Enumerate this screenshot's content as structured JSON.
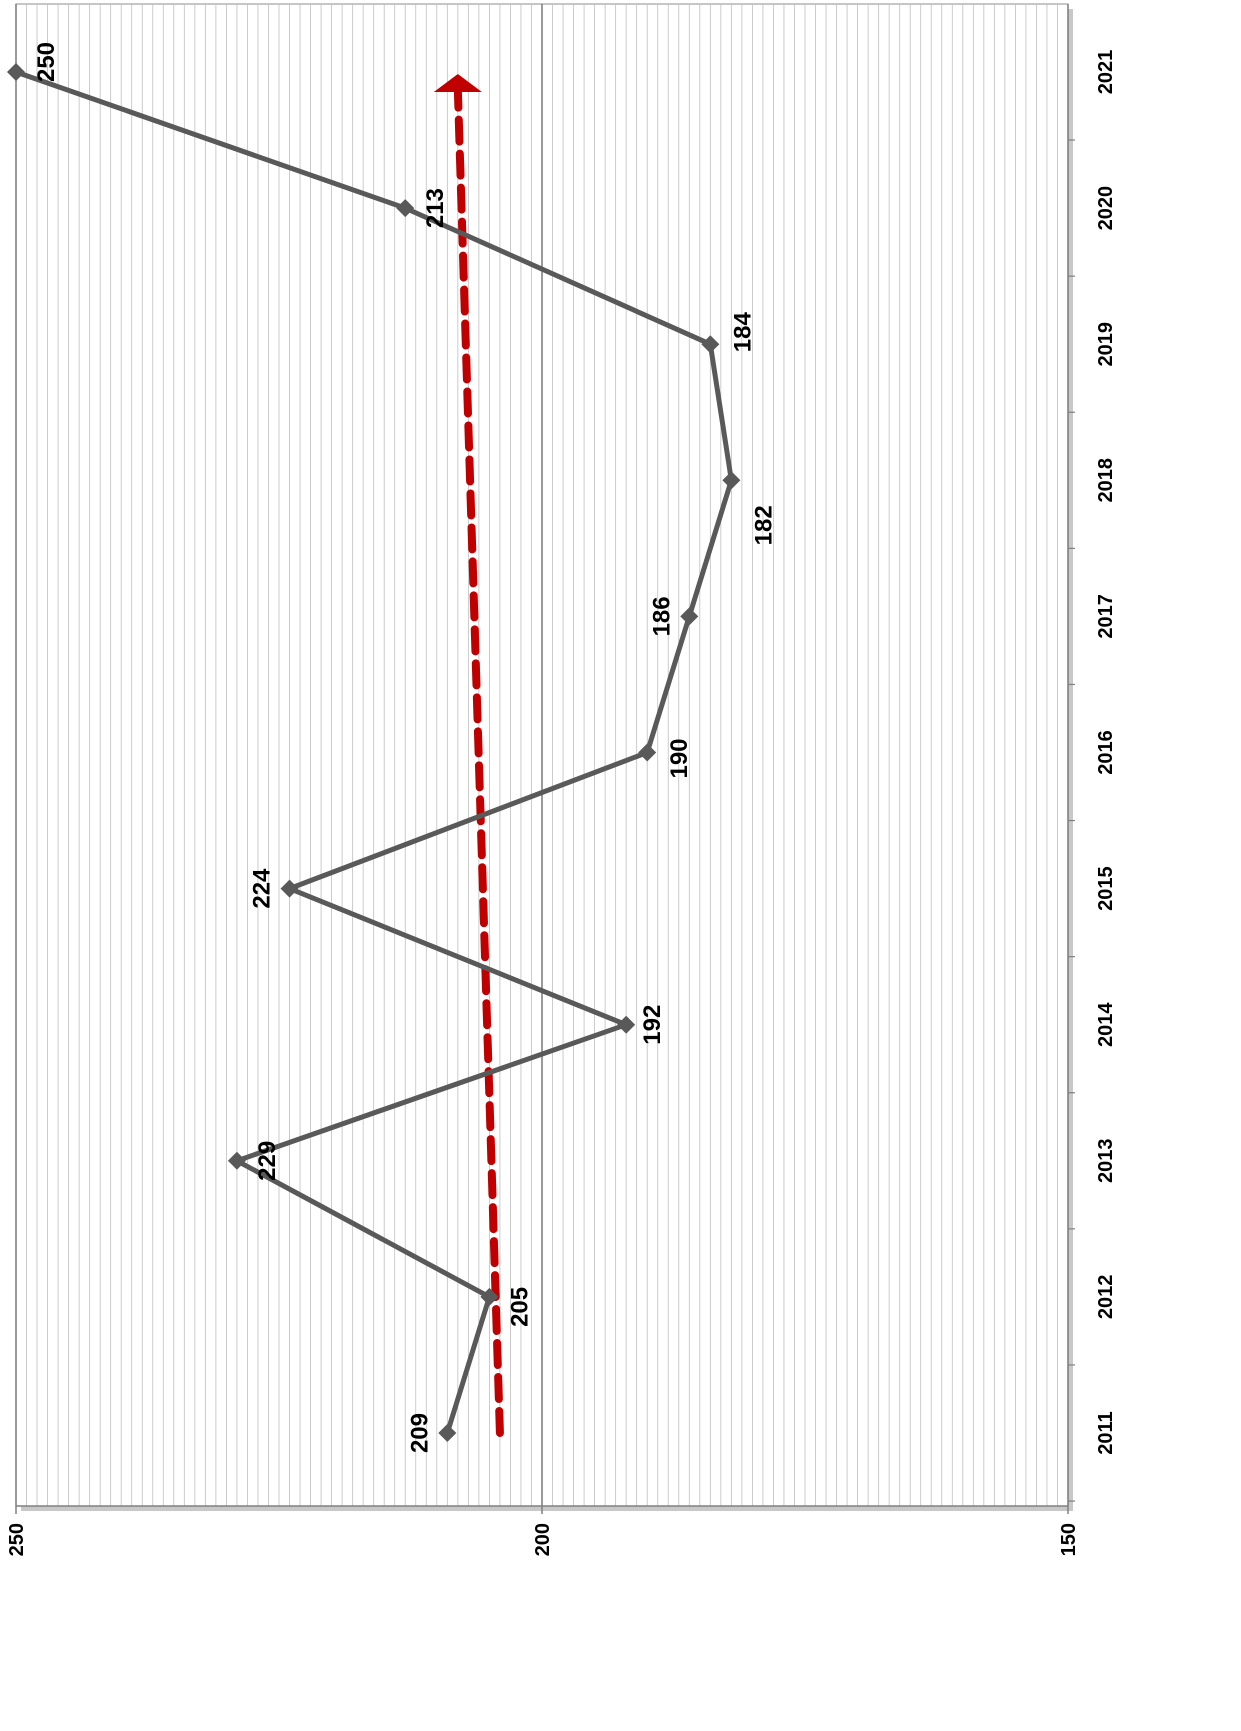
{
  "chart_data": {
    "type": "line",
    "title": "",
    "xlabel": "",
    "ylabel": "",
    "x": [
      "2011",
      "2012",
      "2013",
      "2014",
      "2015",
      "2016",
      "2017",
      "2018",
      "2019",
      "2020",
      "2021"
    ],
    "series": [
      {
        "values": [
          209,
          205,
          229,
          192,
          224,
          190,
          186,
          182,
          184,
          213,
          250
        ],
        "color": "#595959",
        "marker": "diamond"
      }
    ],
    "trendline": {
      "start": 204,
      "end": 208,
      "style": "dashed",
      "color": "#c00000",
      "arrow": "end"
    },
    "data_labels": [
      "209",
      "205",
      "229",
      "192",
      "224",
      "190",
      "186",
      "182",
      "184",
      "213",
      "250"
    ],
    "ylim": [
      150,
      250
    ],
    "y_ticks": [
      "150",
      "200",
      "250"
    ],
    "grid": "on",
    "orientation": "rotated 90 degrees clockwise",
    "plot_background": "#ffffff",
    "grid_color": "#bfbfbf"
  }
}
